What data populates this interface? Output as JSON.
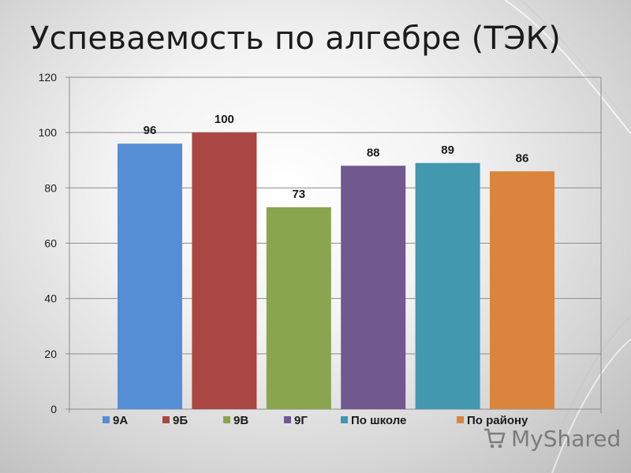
{
  "page": {
    "title": "Успеваемость по алгебре (ТЭК)"
  },
  "chart_data": {
    "type": "bar",
    "title": "Успеваемость по алгебре (ТЭК)",
    "xlabel": "",
    "ylabel": "",
    "ylim": [
      0,
      120
    ],
    "yticks": [
      0,
      20,
      40,
      60,
      80,
      100,
      120
    ],
    "grid": true,
    "legend_position": "bottom",
    "series": [
      {
        "name": "9А",
        "values": [
          96
        ],
        "color": "#558ed5"
      },
      {
        "name": "9Б",
        "values": [
          100
        ],
        "color": "#aa4643"
      },
      {
        "name": "9В",
        "values": [
          73
        ],
        "color": "#89a54e"
      },
      {
        "name": "9Г",
        "values": [
          88
        ],
        "color": "#71588f"
      },
      {
        "name": "По школе",
        "values": [
          89
        ],
        "color": "#4198af"
      },
      {
        "name": "По району",
        "values": [
          86
        ],
        "color": "#db843d"
      }
    ]
  },
  "watermark": {
    "text": "MyShared",
    "icon": "shopping-cart-icon"
  }
}
